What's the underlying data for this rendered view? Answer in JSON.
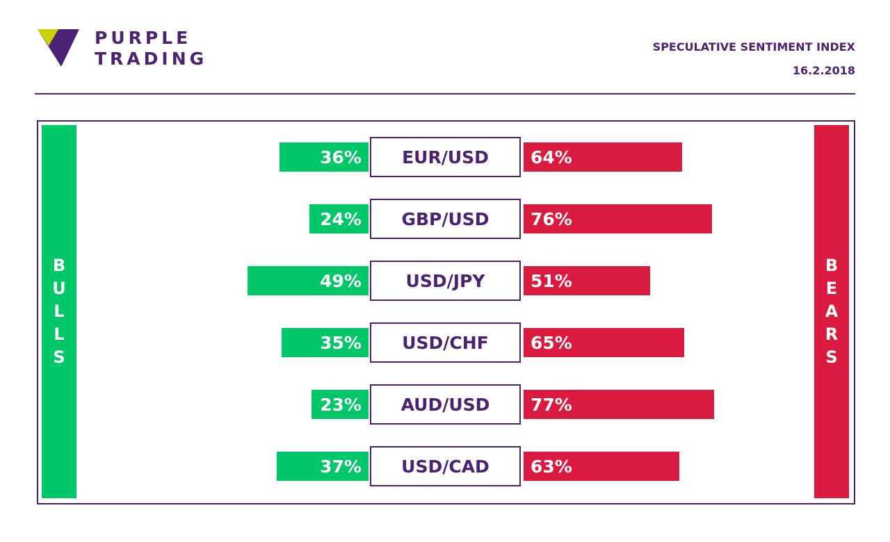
{
  "brand": {
    "line1": "PURPLE",
    "line2": "TRADING",
    "logo_icon": "purple-triangle-logo-icon",
    "color": "#4b2273",
    "accent": "#c8d400"
  },
  "header": {
    "title": "SPECULATIVE SENTIMENT INDEX",
    "date": "16.2.2018"
  },
  "colors": {
    "bulls": "#00c767",
    "bears": "#da1a3e",
    "frame": "#4b2273"
  },
  "chart_data": {
    "type": "bar",
    "orientation": "horizontal-diverging",
    "bulls_label": "BULLS",
    "bears_label": "BEARS",
    "categories": [
      "EUR/USD",
      "GBP/USD",
      "USD/JPY",
      "USD/CHF",
      "AUD/USD",
      "USD/CAD"
    ],
    "series": [
      {
        "name": "BULLS",
        "values": [
          36,
          24,
          49,
          35,
          23,
          37
        ],
        "labels": [
          "36%",
          "24%",
          "49%",
          "35%",
          "23%",
          "37%"
        ]
      },
      {
        "name": "BEARS",
        "values": [
          64,
          76,
          51,
          65,
          77,
          63
        ],
        "labels": [
          "64%",
          "76%",
          "51%",
          "65%",
          "77%",
          "63%"
        ]
      }
    ],
    "unit": "%",
    "xlim": [
      0,
      100
    ]
  }
}
